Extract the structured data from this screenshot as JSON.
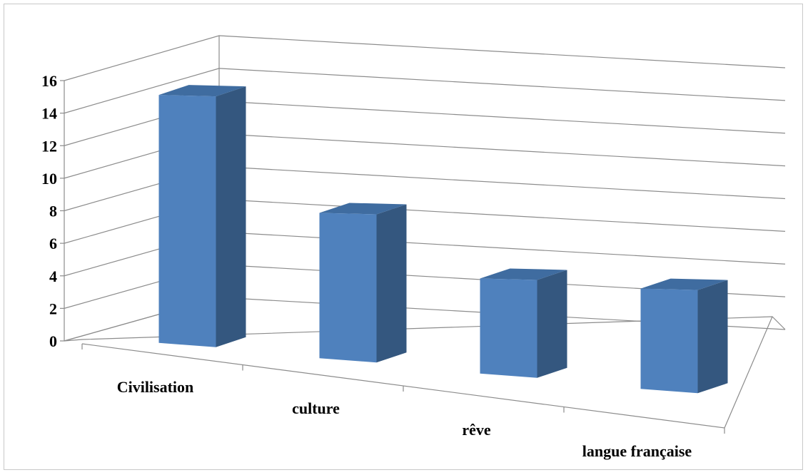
{
  "chart_data": {
    "type": "bar",
    "style": "3d-column",
    "categories": [
      "Civilisation",
      "culture",
      "rêve",
      "langue française"
    ],
    "values": [
      16,
      10,
      7,
      8
    ],
    "ylim": [
      0,
      16
    ],
    "yticks": [
      0,
      2,
      4,
      6,
      8,
      10,
      12,
      14,
      16
    ],
    "grid": true,
    "legend": "none",
    "title": "",
    "xlabel": "",
    "ylabel": ""
  },
  "colors": {
    "bar_front": "#4f81bd",
    "bar_side": "#34577f",
    "bar_top": "#3f6ca0",
    "grid": "#8c8c8c",
    "border": "#c8c8c8"
  }
}
